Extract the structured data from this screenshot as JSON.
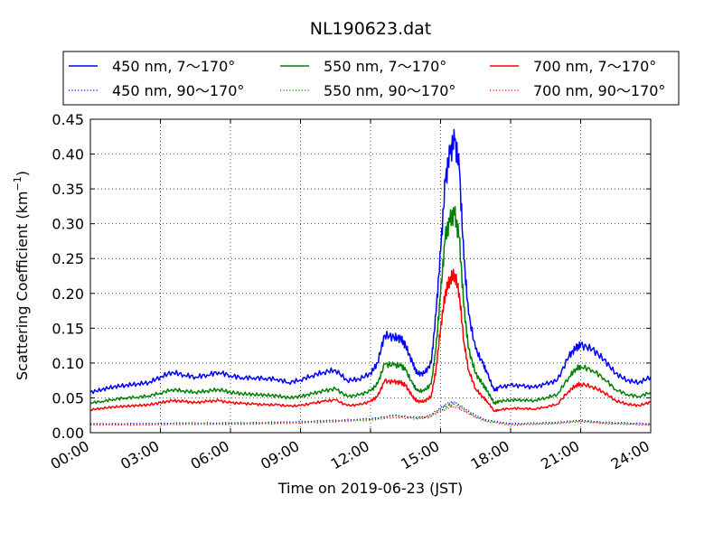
{
  "chart_data": {
    "type": "line",
    "title": "NL190623.dat",
    "xlabel": "Time on 2019-06-23 (JST)",
    "ylabel_main": "Scattering Coefficient (km",
    "ylabel_sup": "−1",
    "ylabel_close": ")",
    "xlim": [
      0,
      24
    ],
    "ylim": [
      0,
      0.45
    ],
    "x_ticks": [
      0,
      3,
      6,
      9,
      12,
      15,
      18,
      21,
      24
    ],
    "x_tick_labels": [
      "00:00",
      "03:00",
      "06:00",
      "09:00",
      "12:00",
      "15:00",
      "18:00",
      "21:00",
      "24:00"
    ],
    "y_ticks": [
      0,
      0.05,
      0.1,
      0.15,
      0.2,
      0.25,
      0.3,
      0.35,
      0.4,
      0.45
    ],
    "y_tick_labels": [
      "0.00",
      "0.05",
      "0.10",
      "0.15",
      "0.20",
      "0.25",
      "0.30",
      "0.35",
      "0.40",
      "0.45"
    ],
    "grid": true,
    "legend_placement": "top (above plot)",
    "series": [
      {
        "name": "450 nm, 7～170°",
        "color": "#0000ff",
        "style": "solid",
        "x": [
          0,
          0.5,
          1,
          1.5,
          2,
          2.5,
          3,
          3.5,
          4,
          4.5,
          5,
          5.5,
          6,
          6.5,
          7,
          7.5,
          8,
          8.5,
          9,
          9.5,
          10,
          10.5,
          11,
          11.5,
          12,
          12.3,
          12.6,
          13,
          13.3,
          13.5,
          13.8,
          14,
          14.3,
          14.6,
          14.8,
          15,
          15.2,
          15.4,
          15.6,
          15.8,
          16,
          16.2,
          16.5,
          16.8,
          17,
          17.3,
          17.5,
          18,
          18.5,
          19,
          19.5,
          20,
          20.5,
          20.8,
          21,
          21.5,
          22,
          22.5,
          23,
          23.5,
          24
        ],
        "y": [
          0.058,
          0.062,
          0.066,
          0.068,
          0.07,
          0.072,
          0.08,
          0.087,
          0.083,
          0.08,
          0.083,
          0.087,
          0.082,
          0.079,
          0.079,
          0.078,
          0.077,
          0.072,
          0.076,
          0.082,
          0.087,
          0.09,
          0.075,
          0.077,
          0.085,
          0.1,
          0.14,
          0.137,
          0.135,
          0.125,
          0.1,
          0.085,
          0.085,
          0.1,
          0.17,
          0.26,
          0.36,
          0.4,
          0.42,
          0.38,
          0.25,
          0.17,
          0.12,
          0.1,
          0.085,
          0.06,
          0.065,
          0.068,
          0.067,
          0.065,
          0.07,
          0.075,
          0.11,
          0.122,
          0.126,
          0.12,
          0.105,
          0.085,
          0.075,
          0.072,
          0.08
        ]
      },
      {
        "name": "550 nm, 7～170°",
        "color": "#008000",
        "style": "solid",
        "x": [
          0,
          0.5,
          1,
          1.5,
          2,
          2.5,
          3,
          3.5,
          4,
          4.5,
          5,
          5.5,
          6,
          6.5,
          7,
          7.5,
          8,
          8.5,
          9,
          9.5,
          10,
          10.5,
          11,
          11.5,
          12,
          12.3,
          12.6,
          13,
          13.3,
          13.5,
          13.8,
          14,
          14.3,
          14.6,
          14.8,
          15,
          15.2,
          15.4,
          15.6,
          15.8,
          16,
          16.2,
          16.5,
          16.8,
          17,
          17.3,
          17.5,
          18,
          18.5,
          19,
          19.5,
          20,
          20.5,
          20.8,
          21,
          21.5,
          22,
          22.5,
          23,
          23.5,
          24
        ],
        "y": [
          0.043,
          0.045,
          0.048,
          0.05,
          0.051,
          0.053,
          0.057,
          0.062,
          0.06,
          0.058,
          0.06,
          0.062,
          0.058,
          0.056,
          0.055,
          0.054,
          0.053,
          0.05,
          0.052,
          0.056,
          0.06,
          0.063,
          0.052,
          0.054,
          0.06,
          0.07,
          0.098,
          0.097,
          0.096,
          0.09,
          0.07,
          0.06,
          0.06,
          0.07,
          0.12,
          0.2,
          0.28,
          0.305,
          0.315,
          0.28,
          0.18,
          0.12,
          0.085,
          0.07,
          0.06,
          0.042,
          0.045,
          0.047,
          0.047,
          0.046,
          0.05,
          0.055,
          0.08,
          0.092,
          0.095,
          0.09,
          0.078,
          0.062,
          0.055,
          0.052,
          0.058
        ]
      },
      {
        "name": "700 nm, 7～170°",
        "color": "#ff0000",
        "style": "solid",
        "x": [
          0,
          0.5,
          1,
          1.5,
          2,
          2.5,
          3,
          3.5,
          4,
          4.5,
          5,
          5.5,
          6,
          6.5,
          7,
          7.5,
          8,
          8.5,
          9,
          9.5,
          10,
          10.5,
          11,
          11.5,
          12,
          12.3,
          12.6,
          13,
          13.3,
          13.5,
          13.8,
          14,
          14.3,
          14.6,
          14.8,
          15,
          15.2,
          15.4,
          15.6,
          15.8,
          16,
          16.2,
          16.5,
          16.8,
          17,
          17.3,
          17.5,
          18,
          18.5,
          19,
          19.5,
          20,
          20.5,
          20.8,
          21,
          21.5,
          22,
          22.5,
          23,
          23.5,
          24
        ],
        "y": [
          0.033,
          0.035,
          0.037,
          0.038,
          0.039,
          0.04,
          0.043,
          0.046,
          0.045,
          0.043,
          0.045,
          0.046,
          0.043,
          0.042,
          0.041,
          0.04,
          0.04,
          0.038,
          0.039,
          0.042,
          0.045,
          0.047,
          0.039,
          0.04,
          0.045,
          0.052,
          0.074,
          0.073,
          0.072,
          0.068,
          0.052,
          0.045,
          0.045,
          0.052,
          0.09,
          0.15,
          0.2,
          0.22,
          0.228,
          0.2,
          0.13,
          0.09,
          0.063,
          0.052,
          0.045,
          0.031,
          0.033,
          0.035,
          0.035,
          0.034,
          0.037,
          0.041,
          0.06,
          0.068,
          0.07,
          0.066,
          0.058,
          0.046,
          0.041,
          0.039,
          0.044
        ]
      },
      {
        "name": "450 nm, 90～170°",
        "color": "#0000ff",
        "style": "dotted",
        "x": [
          0,
          2,
          4,
          6,
          8,
          10,
          12,
          13,
          14,
          14.5,
          15,
          15.3,
          15.6,
          16,
          16.5,
          17,
          18,
          20,
          21,
          22,
          24
        ],
        "y": [
          0.013,
          0.013,
          0.014,
          0.014,
          0.015,
          0.017,
          0.02,
          0.025,
          0.022,
          0.024,
          0.035,
          0.042,
          0.044,
          0.035,
          0.025,
          0.018,
          0.013,
          0.015,
          0.018,
          0.015,
          0.013
        ]
      },
      {
        "name": "550 nm, 90～170°",
        "color": "#008000",
        "style": "dotted",
        "x": [
          0,
          2,
          4,
          6,
          8,
          10,
          12,
          13,
          14,
          14.5,
          15,
          15.3,
          15.6,
          16,
          16.5,
          17,
          18,
          20,
          21,
          22,
          24
        ],
        "y": [
          0.012,
          0.012,
          0.013,
          0.013,
          0.014,
          0.016,
          0.019,
          0.024,
          0.021,
          0.023,
          0.033,
          0.039,
          0.041,
          0.033,
          0.023,
          0.017,
          0.012,
          0.014,
          0.017,
          0.014,
          0.012
        ]
      },
      {
        "name": "700 nm, 90～170°",
        "color": "#ff0000",
        "style": "dotted",
        "x": [
          0,
          2,
          4,
          6,
          8,
          10,
          12,
          13,
          14,
          14.5,
          15,
          15.3,
          15.6,
          16,
          16.5,
          17,
          18,
          20,
          21,
          22,
          24
        ],
        "y": [
          0.011,
          0.011,
          0.012,
          0.012,
          0.013,
          0.015,
          0.018,
          0.022,
          0.02,
          0.022,
          0.031,
          0.036,
          0.038,
          0.031,
          0.022,
          0.016,
          0.011,
          0.013,
          0.016,
          0.013,
          0.011
        ]
      }
    ],
    "legend_order": [
      0,
      1,
      2,
      3,
      4,
      5
    ]
  }
}
